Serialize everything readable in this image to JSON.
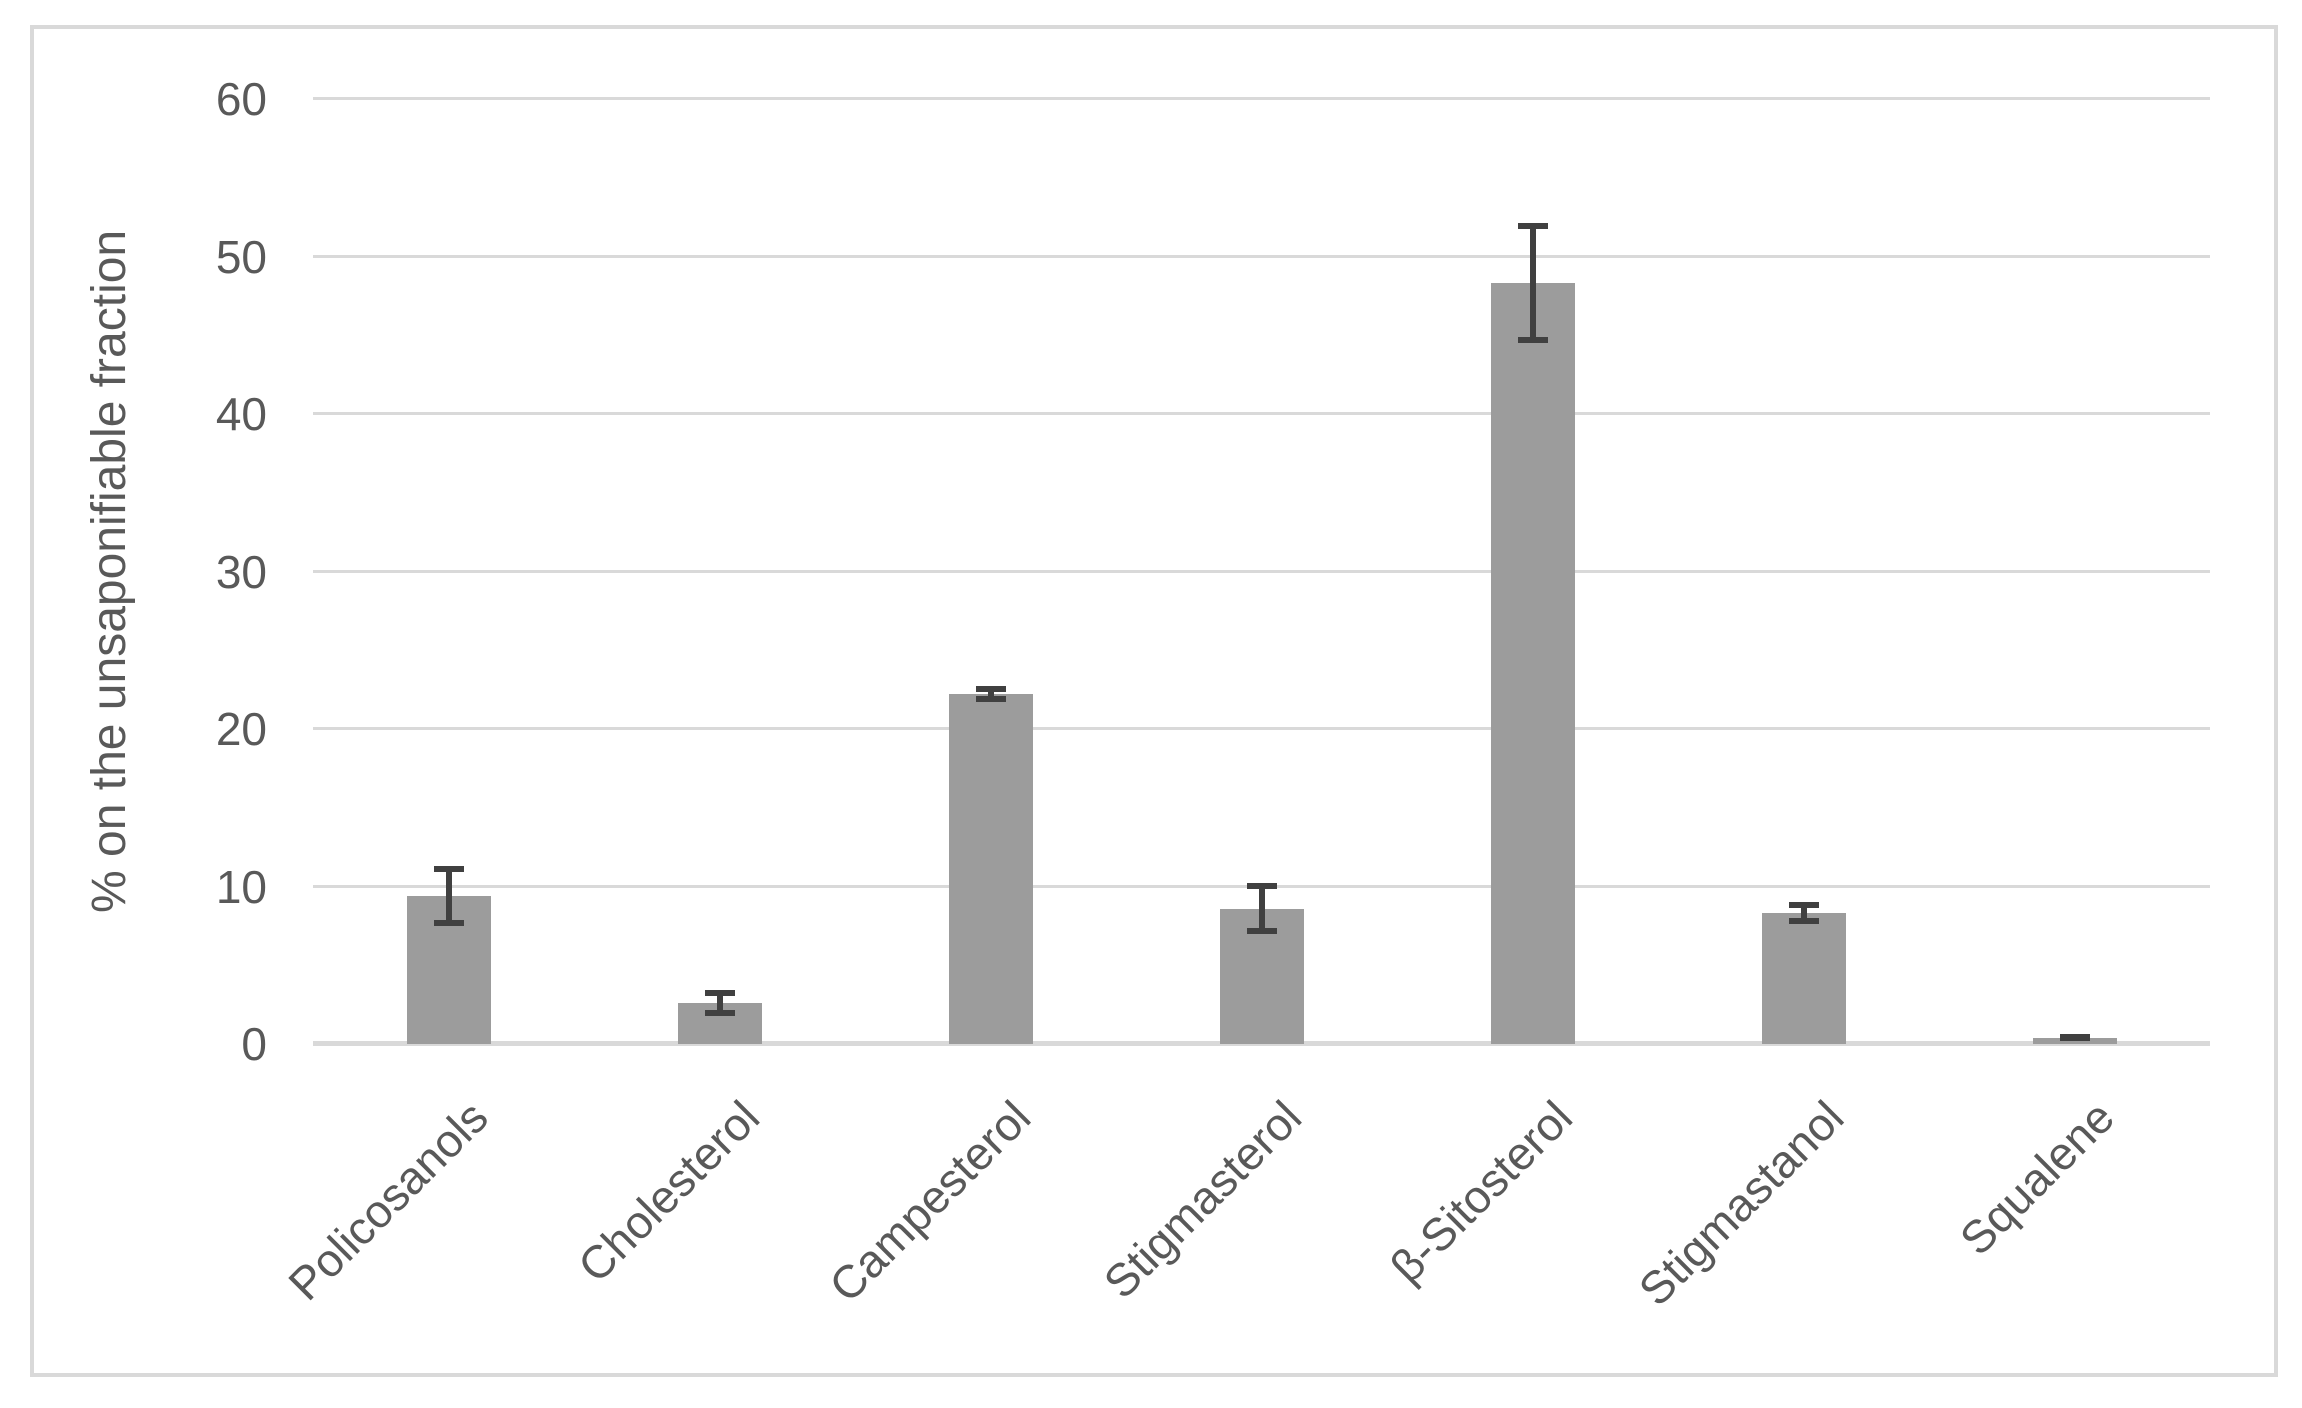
{
  "chart_data": {
    "type": "bar",
    "categories": [
      "Policosanols",
      "Cholesterol",
      "Campesterol",
      "Stigmasterol",
      "β-Sitosterol",
      "Stigmastanol",
      "Squalene"
    ],
    "values": [
      9.4,
      2.6,
      22.2,
      8.6,
      48.3,
      8.3,
      0.4
    ],
    "error_bars": [
      1.9,
      0.8,
      0.5,
      1.6,
      3.8,
      0.7,
      0.15
    ],
    "title": "",
    "xlabel": "",
    "ylabel": "% on the unsaponifiable fraction",
    "ylim": [
      0,
      60
    ],
    "yticks": [
      0,
      10,
      20,
      30,
      40,
      50,
      60
    ],
    "ytick_labels": [
      "0",
      "10",
      "20",
      "30",
      "40",
      "50",
      "60"
    ],
    "grid": true,
    "legend": false,
    "bar_color": "#9C9C9C",
    "error_bar_color": "#404040",
    "gridline_color": "#D9D9D9",
    "axis_text_color": "#595959",
    "frame_border_color": "#D9D9D9"
  }
}
